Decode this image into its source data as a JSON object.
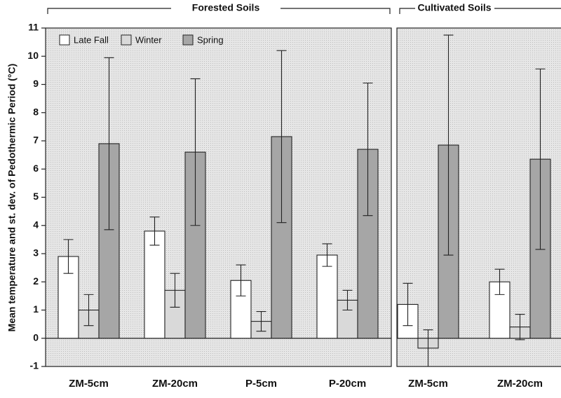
{
  "chart_data": [
    {
      "type": "bar",
      "title": "Forested Soils",
      "y_label": "Mean temperature and st. dev. of Pedothermic Period (°C)",
      "categories": [
        "ZM-5cm",
        "ZM-20cm",
        "P-5cm",
        "P-20cm"
      ],
      "series": [
        {
          "name": "Late Fall",
          "color": "#ffffff",
          "values": [
            2.9,
            3.8,
            2.05,
            2.95
          ],
          "errors": [
            0.6,
            0.5,
            0.55,
            0.4
          ]
        },
        {
          "name": "Winter",
          "color": "#d9d9d9",
          "values": [
            1.0,
            1.7,
            0.6,
            1.35
          ],
          "errors": [
            0.55,
            0.6,
            0.35,
            0.35
          ]
        },
        {
          "name": "Spring",
          "color": "#a6a6a6",
          "values": [
            6.9,
            6.6,
            7.15,
            6.7
          ],
          "errors": [
            3.05,
            2.6,
            3.05,
            2.35
          ]
        }
      ],
      "ylim": [
        -1,
        11
      ],
      "yticks": [
        -1,
        0,
        1,
        2,
        3,
        4,
        5,
        6,
        7,
        8,
        9,
        10,
        11
      ]
    },
    {
      "type": "bar",
      "title": "Cultivated Soils",
      "categories": [
        "ZM-5cm",
        "ZM-20cm"
      ],
      "series": [
        {
          "color": "#ffffff",
          "values": [
            1.2,
            2.0
          ],
          "errors": [
            0.75,
            0.45
          ]
        },
        {
          "color": "#d9d9d9",
          "values": [
            -0.35,
            0.4
          ],
          "errors": [
            0.65,
            0.45
          ]
        },
        {
          "color": "#a6a6a6",
          "values": [
            6.85,
            6.35
          ],
          "errors": [
            3.9,
            3.2
          ]
        }
      ],
      "ylim": [
        -1,
        11
      ]
    }
  ]
}
